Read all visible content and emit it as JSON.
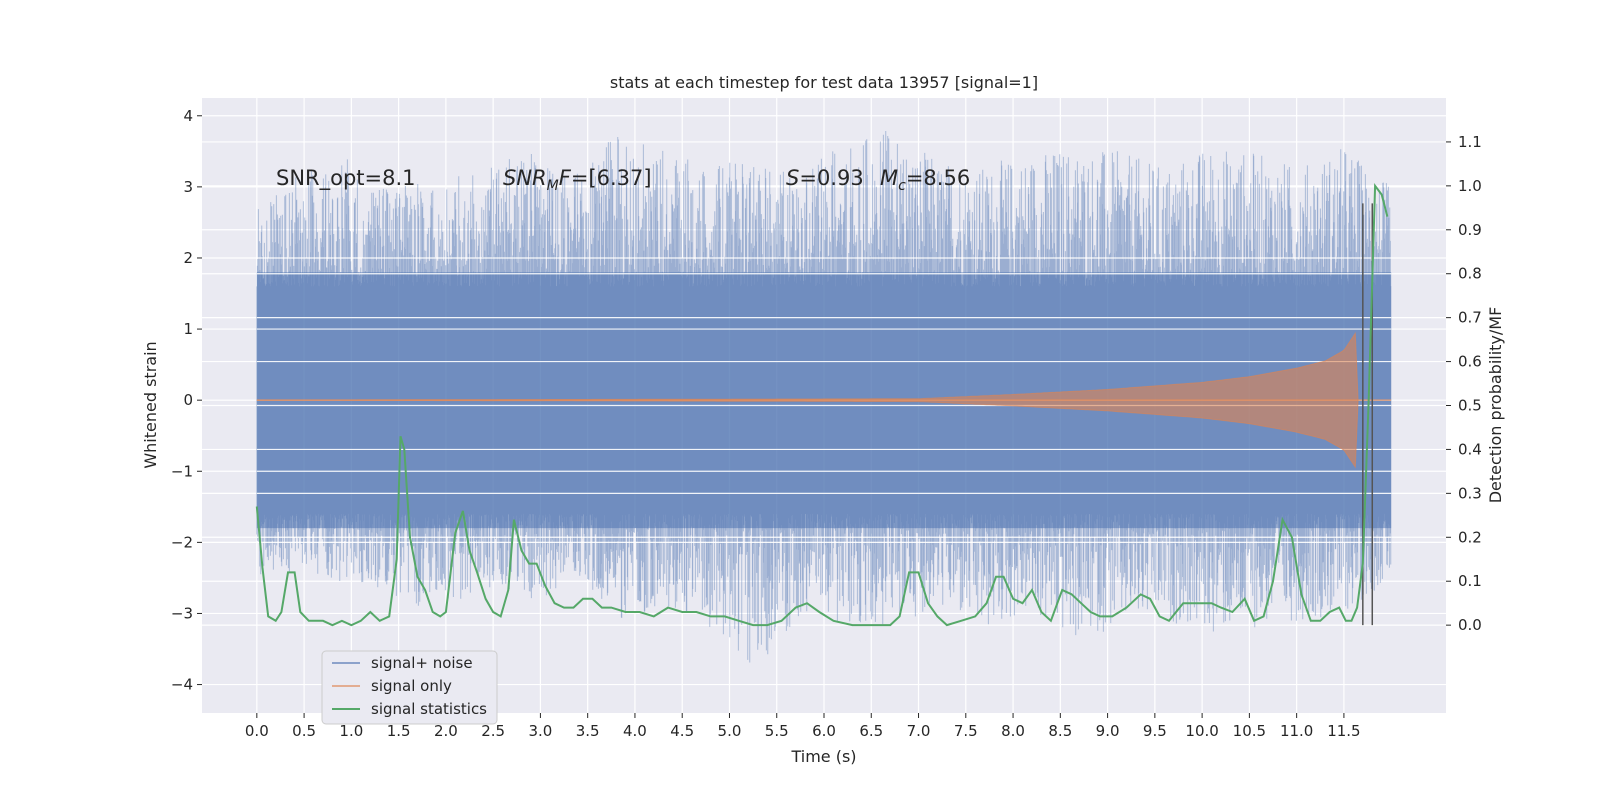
{
  "chart_data": {
    "type": "line",
    "title": "stats at each timestep for test data 13957 [signal=1]",
    "xlabel": "Time (s)",
    "ylabel": "Whitened strain",
    "ylabel_right": "Detection probability/MF",
    "xlim": [
      -0.58,
      12.58
    ],
    "ylim": [
      -4.4,
      4.25
    ],
    "ylim_right": [
      -0.2,
      1.2
    ],
    "x_ticks": [
      "0.0",
      "0.5",
      "1.0",
      "1.5",
      "2.0",
      "2.5",
      "3.0",
      "3.5",
      "4.0",
      "4.5",
      "5.0",
      "5.5",
      "6.0",
      "6.5",
      "7.0",
      "7.5",
      "8.0",
      "8.5",
      "9.0",
      "9.5",
      "10.0",
      "10.5",
      "11.0",
      "11.5"
    ],
    "y_ticks": [
      "4",
      "3",
      "2",
      "1",
      "0",
      "−1",
      "−2",
      "−3",
      "−4"
    ],
    "y_ticks_right": [
      "1.1",
      "1.0",
      "0.9",
      "0.8",
      "0.7",
      "0.6",
      "0.5",
      "0.4",
      "0.3",
      "0.2",
      "0.1",
      "0.0"
    ],
    "grid": true,
    "legend_position": "lower-left",
    "annotations": {
      "snr_opt": "SNR_opt=8.1",
      "snr_mf_base": "SNR",
      "snr_mf_sub": "M",
      "snr_mf_rest": "F=[6.37]",
      "s_base": "S",
      "s_rest": "=0.93",
      "mc_base": "M",
      "mc_sub": "c",
      "mc_rest": "=8.56"
    },
    "colors": {
      "noise": "#4c72b0",
      "signal": "#dd8452",
      "stat": "#55a868",
      "vlines": "#555555",
      "background": "#eaeaf2"
    },
    "series": [
      {
        "name": "signal+ noise",
        "x_range": [
          0.0,
          12.0
        ],
        "core_band": [
          -1.8,
          1.8
        ],
        "envelope_upper": [
          3.0,
          3.2,
          3.4,
          3.0,
          3.1,
          3.3,
          3.5,
          3.2,
          3.8,
          3.5,
          3.3,
          3.4,
          3.2,
          3.7,
          3.8,
          3.4,
          3.3,
          3.5,
          3.6,
          3.5,
          3.3,
          3.6,
          3.5,
          3.3,
          3.6,
          3.0
        ],
        "envelope_lower": [
          -2.5,
          -2.4,
          -2.6,
          -2.8,
          -3.0,
          -2.6,
          -2.9,
          -2.5,
          -3.1,
          -2.9,
          -3.2,
          -3.8,
          -3.0,
          -3.3,
          -3.2,
          -2.9,
          -3.3,
          -3.0,
          -3.4,
          -3.2,
          -3.1,
          -3.3,
          -3.2,
          -3.1,
          -3.0,
          -2.5
        ]
      },
      {
        "name": "signal only",
        "x_range": [
          0.0,
          12.0
        ],
        "amplitude_t": [
          0.0,
          7.0,
          8.0,
          9.0,
          10.0,
          10.5,
          11.0,
          11.3,
          11.5,
          11.6,
          11.65
        ],
        "amplitude": [
          0.0,
          0.02,
          0.08,
          0.15,
          0.25,
          0.33,
          0.45,
          0.55,
          0.7,
          0.9,
          1.0
        ],
        "post_merger": 0.0
      },
      {
        "name": "signal statistics",
        "x": [
          0.0,
          0.06,
          0.12,
          0.2,
          0.26,
          0.33,
          0.4,
          0.46,
          0.55,
          0.62,
          0.7,
          0.8,
          0.9,
          1.0,
          1.1,
          1.2,
          1.3,
          1.4,
          1.48,
          1.52,
          1.56,
          1.62,
          1.7,
          1.78,
          1.86,
          1.94,
          2.0,
          2.1,
          2.18,
          2.25,
          2.33,
          2.42,
          2.5,
          2.58,
          2.66,
          2.72,
          2.8,
          2.88,
          2.96,
          3.05,
          3.15,
          3.25,
          3.35,
          3.45,
          3.55,
          3.65,
          3.75,
          3.9,
          4.05,
          4.2,
          4.35,
          4.5,
          4.65,
          4.8,
          4.95,
          5.1,
          5.25,
          5.4,
          5.55,
          5.7,
          5.82,
          5.95,
          6.1,
          6.3,
          6.5,
          6.7,
          6.8,
          6.9,
          7.0,
          7.1,
          7.2,
          7.3,
          7.45,
          7.6,
          7.72,
          7.82,
          7.9,
          8.0,
          8.1,
          8.2,
          8.3,
          8.4,
          8.52,
          8.62,
          8.72,
          8.82,
          8.92,
          9.05,
          9.2,
          9.35,
          9.45,
          9.55,
          9.65,
          9.8,
          9.95,
          10.1,
          10.2,
          10.32,
          10.45,
          10.55,
          10.65,
          10.75,
          10.85,
          10.95,
          11.05,
          11.15,
          11.25,
          11.35,
          11.45,
          11.52,
          11.58,
          11.64,
          11.7,
          11.76,
          11.83,
          11.9,
          11.96
        ],
        "y": [
          0.27,
          0.13,
          0.02,
          0.01,
          0.03,
          0.12,
          0.12,
          0.03,
          0.01,
          0.01,
          0.01,
          0.0,
          0.01,
          0.0,
          0.01,
          0.03,
          0.01,
          0.02,
          0.15,
          0.43,
          0.4,
          0.2,
          0.11,
          0.08,
          0.03,
          0.02,
          0.03,
          0.21,
          0.26,
          0.17,
          0.12,
          0.06,
          0.03,
          0.02,
          0.08,
          0.24,
          0.17,
          0.14,
          0.14,
          0.09,
          0.05,
          0.04,
          0.04,
          0.06,
          0.06,
          0.04,
          0.04,
          0.03,
          0.03,
          0.02,
          0.04,
          0.03,
          0.03,
          0.02,
          0.02,
          0.01,
          0.0,
          0.0,
          0.01,
          0.04,
          0.05,
          0.03,
          0.01,
          0.0,
          0.0,
          0.0,
          0.02,
          0.12,
          0.12,
          0.05,
          0.02,
          0.0,
          0.01,
          0.02,
          0.05,
          0.11,
          0.11,
          0.06,
          0.05,
          0.08,
          0.03,
          0.01,
          0.08,
          0.07,
          0.05,
          0.03,
          0.02,
          0.02,
          0.04,
          0.07,
          0.06,
          0.02,
          0.01,
          0.05,
          0.05,
          0.05,
          0.04,
          0.03,
          0.06,
          0.01,
          0.02,
          0.1,
          0.24,
          0.2,
          0.07,
          0.01,
          0.01,
          0.03,
          0.04,
          0.01,
          0.01,
          0.04,
          0.14,
          0.5,
          1.0,
          0.98,
          0.93
        ]
      }
    ],
    "vertical_lines": {
      "x": [
        11.7,
        11.8
      ],
      "y_range": [
        0.0,
        0.96
      ]
    }
  }
}
